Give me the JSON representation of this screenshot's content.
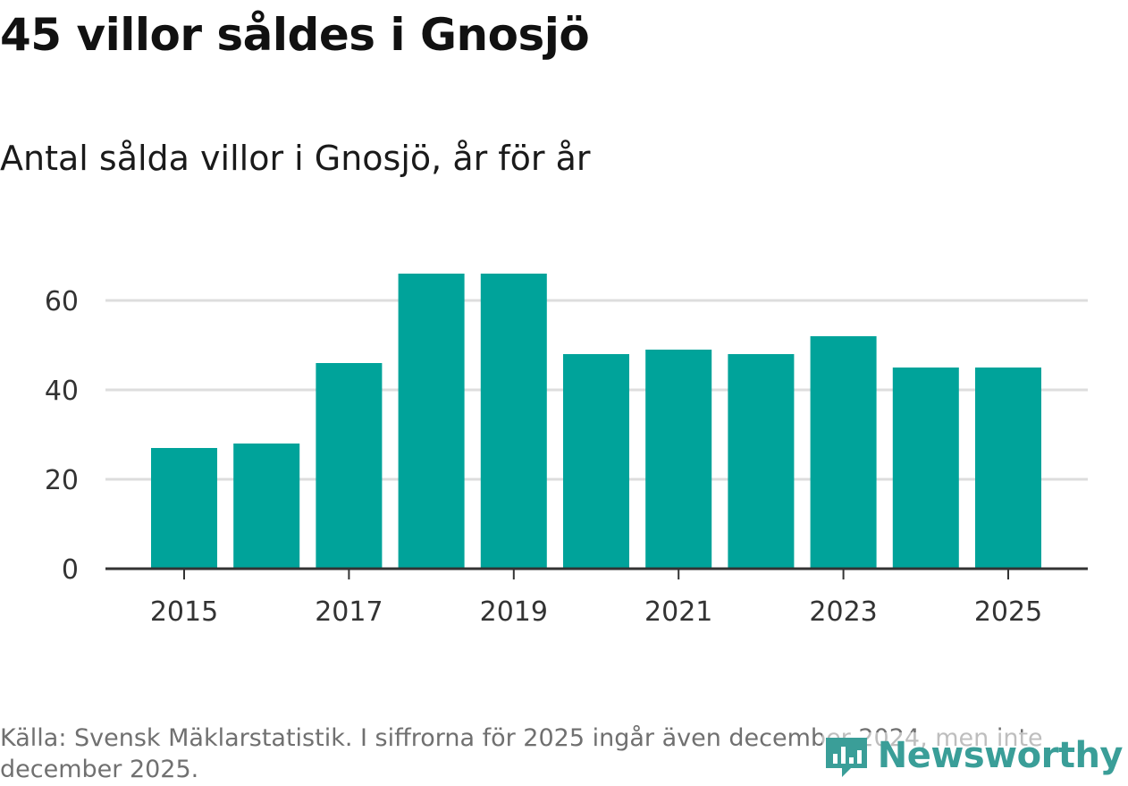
{
  "header": {
    "title": "45 villor såldes i Gnosjö",
    "subtitle": "Antal sålda villor i Gnosjö, år för år"
  },
  "chart_data": {
    "type": "bar",
    "title": "45 villor såldes i Gnosjö",
    "subtitle": "Antal sålda villor i Gnosjö, år för år",
    "xlabel": "",
    "ylabel": "",
    "categories": [
      "2015",
      "2016",
      "2017",
      "2018",
      "2019",
      "2020",
      "2021",
      "2022",
      "2023",
      "2024",
      "2025"
    ],
    "values": [
      27,
      28,
      46,
      66,
      66,
      48,
      49,
      48,
      52,
      45,
      45
    ],
    "ylim": [
      0,
      70
    ],
    "yticks": [
      0,
      20,
      40,
      60
    ],
    "xticks": [
      "2015",
      "2017",
      "2019",
      "2021",
      "2023",
      "2025"
    ],
    "grid": true,
    "color": "#00a39a"
  },
  "footer": {
    "source": "Källa: Svensk Mäklarstatistik. I siffrorna för 2025 ingår även december 2024, men inte december 2025.",
    "brand": "Newsworthy",
    "brand_color": "#3a9e98"
  }
}
